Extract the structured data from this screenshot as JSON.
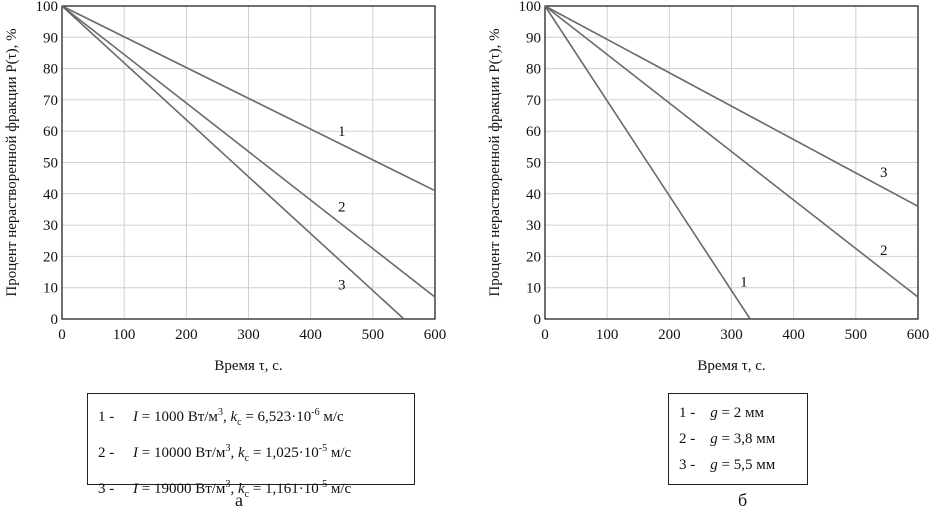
{
  "chart_data": [
    {
      "type": "line",
      "panel_label": "а",
      "xlabel": "Время τ, с.",
      "ylabel": "Процент нерастворенной фракции P(τ), %",
      "xlim": [
        0,
        600
      ],
      "ylim": [
        0,
        100
      ],
      "x_ticks": [
        "0",
        "100",
        "200",
        "300",
        "400",
        "500",
        "600"
      ],
      "y_ticks": [
        "0",
        "10",
        "20",
        "30",
        "40",
        "50",
        "60",
        "70",
        "80",
        "90",
        "100"
      ],
      "grid": true,
      "series": [
        {
          "name": "1",
          "x": [
            0,
            600
          ],
          "y": [
            100,
            41
          ]
        },
        {
          "name": "2",
          "x": [
            0,
            600
          ],
          "y": [
            100,
            7
          ]
        },
        {
          "name": "3",
          "x": [
            0,
            550
          ],
          "y": [
            100,
            0
          ]
        }
      ],
      "curve_labels": [
        {
          "text": "1",
          "x": 450,
          "y": 60
        },
        {
          "text": "2",
          "x": 450,
          "y": 36
        },
        {
          "text": "3",
          "x": 450,
          "y": 11
        }
      ],
      "legend": [
        {
          "num": "1 -",
          "I": "I",
          "eq1": " = 1000 Вт/м",
          "sup1": "3",
          "k": ", k",
          "ksub": "c",
          "eq2": " = 6,523·10",
          "exp": "-6",
          "unit": " м/с"
        },
        {
          "num": "2 -",
          "I": "I",
          "eq1": " = 10000 Вт/м",
          "sup1": "3",
          "k": ", k",
          "ksub": "c",
          "eq2": " = 1,025·10",
          "exp": "-5",
          "unit": " м/с"
        },
        {
          "num": "3 -",
          "I": "I",
          "eq1": " = 19000 Вт/м",
          "sup1": "3",
          "k": ", k",
          "ksub": "c",
          "eq2": " = 1,161·10",
          "exp": "-5",
          "unit": " м/с"
        }
      ]
    },
    {
      "type": "line",
      "panel_label": "б",
      "xlabel": "Время τ, с.",
      "ylabel": "Процент нерастворенной фракции P(τ), %",
      "xlim": [
        0,
        600
      ],
      "ylim": [
        0,
        100
      ],
      "x_ticks": [
        "0",
        "100",
        "200",
        "300",
        "400",
        "500",
        "600"
      ],
      "y_ticks": [
        "0",
        "10",
        "20",
        "30",
        "40",
        "50",
        "60",
        "70",
        "80",
        "90",
        "100"
      ],
      "grid": true,
      "series": [
        {
          "name": "1",
          "x": [
            0,
            330
          ],
          "y": [
            100,
            0
          ]
        },
        {
          "name": "2",
          "x": [
            0,
            600
          ],
          "y": [
            100,
            7
          ]
        },
        {
          "name": "3",
          "x": [
            0,
            600
          ],
          "y": [
            100,
            36
          ]
        }
      ],
      "curve_labels": [
        {
          "text": "1",
          "x": 320,
          "y": 12
        },
        {
          "text": "2",
          "x": 545,
          "y": 22
        },
        {
          "text": "3",
          "x": 545,
          "y": 47
        }
      ],
      "legend": [
        {
          "num": "1 -",
          "g": "g",
          "value": " = 2 мм"
        },
        {
          "num": "2 -",
          "g": "g",
          "value": " = 3,8 мм"
        },
        {
          "num": "3 -",
          "g": "g",
          "value": " = 5,5 мм"
        }
      ]
    }
  ]
}
